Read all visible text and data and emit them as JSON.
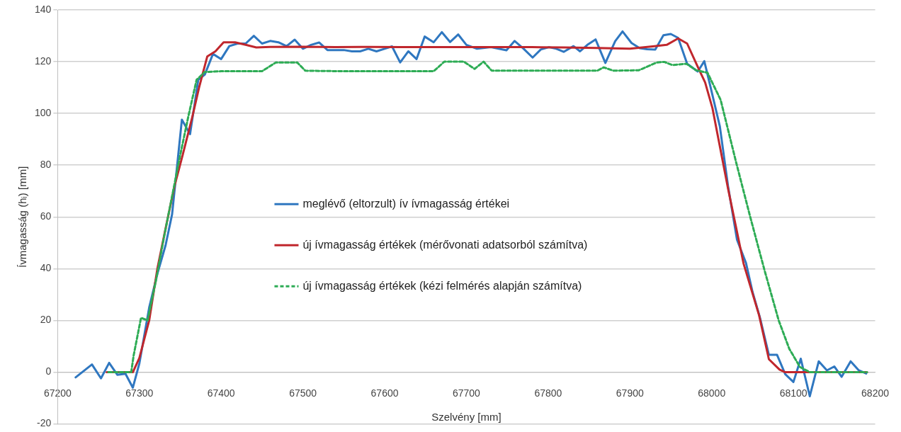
{
  "chart_data": {
    "type": "line",
    "xlabel": "Szelvény [mm]",
    "ylabel": "Ívmagasság (hᵢ) [mm]",
    "xlim": [
      67200,
      68200
    ],
    "xticks": [
      67200,
      67300,
      67400,
      67500,
      67600,
      67700,
      67800,
      67900,
      68000,
      68100,
      68200
    ],
    "ylim": [
      -20,
      140
    ],
    "yticks": [
      -20,
      0,
      20,
      40,
      60,
      80,
      100,
      120,
      140
    ],
    "grid": "y",
    "legend": "center",
    "marker": "none",
    "series": [
      {
        "name": "meglévő (eltorzult) ív ívmagasság értékei",
        "color": "#2f77c0",
        "line_style": "solid",
        "x": [
          67222,
          67242,
          67253,
          67263,
          67273,
          67283,
          67292,
          67300,
          67312,
          67322,
          67332,
          67340,
          67352,
          67362,
          67372,
          67380,
          67390,
          67400,
          67410,
          67420,
          67430,
          67440,
          67450,
          67460,
          67470,
          67480,
          67490,
          67500,
          67510,
          67520,
          67530,
          67540,
          67550,
          67560,
          67570,
          67580,
          67590,
          67600,
          67609,
          67619,
          67629,
          67639,
          67649,
          67660,
          67670,
          67680,
          67690,
          67700,
          67713,
          67730,
          67749,
          67759,
          67770,
          67781,
          67791,
          67801,
          67810,
          67819,
          67831,
          67839,
          67848,
          67858,
          67870,
          67882,
          67891,
          67902,
          67912,
          67921,
          67931,
          67941,
          67950,
          67959,
          67970,
          67983,
          67991,
          67998,
          68010,
          68020,
          68031,
          68042,
          68050,
          68059,
          68070,
          68080,
          68090,
          68100,
          68109,
          68120,
          68131,
          68141,
          68150,
          68159,
          68170,
          68180,
          68189
        ],
        "values": [
          -2,
          3,
          -2.4,
          3.6,
          -1,
          -0.6,
          -6,
          3.4,
          25,
          38,
          49,
          61,
          97.6,
          92,
          113,
          115,
          123,
          121,
          126,
          127,
          127,
          130,
          127,
          128,
          127.5,
          126,
          128.5,
          125,
          126.5,
          127.4,
          124.5,
          124.5,
          124.5,
          124,
          124,
          125,
          124,
          125,
          125.9,
          119.7,
          124,
          121,
          129.7,
          127.5,
          131.4,
          127.6,
          130.5,
          126.5,
          125,
          125.6,
          124.4,
          128,
          125,
          121.6,
          124.7,
          125.6,
          125,
          123.8,
          126,
          124,
          126.5,
          128.6,
          119.5,
          127.9,
          131.7,
          127.2,
          125.2,
          124.8,
          124.7,
          130.2,
          130.7,
          129.2,
          119.2,
          116.2,
          120.2,
          111,
          95,
          72,
          51.2,
          42.2,
          31,
          21.2,
          6.7,
          6.7,
          -0.8,
          -3.8,
          5.2,
          -9.3,
          4.2,
          0.7,
          2.2,
          -1.8,
          4.2,
          0.7,
          -0.5
        ]
      },
      {
        "name": "új ívmagasság értékek (mérővonati adatsorból számítva)",
        "color": "#c0272d",
        "line_style": "solid",
        "x": [
          67260,
          67280,
          67292,
          67300,
          67312,
          67322,
          67333,
          67343,
          67353,
          67365,
          67373,
          67383,
          67393,
          67403,
          67417,
          67430,
          67443,
          67460,
          67500,
          67540,
          67580,
          67620,
          67660,
          67700,
          67740,
          67780,
          67820,
          67860,
          67900,
          67930,
          67945,
          67959,
          67970,
          67983,
          67992,
          68001,
          68020,
          68039,
          68058,
          68070,
          68083,
          68090,
          68130,
          68190
        ],
        "values": [
          0,
          0,
          0,
          5.5,
          20,
          40,
          57,
          72,
          84,
          99,
          110,
          122,
          124,
          127.5,
          127.5,
          126.5,
          125.5,
          125.7,
          125.8,
          125.6,
          125.7,
          125.6,
          125.6,
          125.6,
          125.6,
          125.6,
          125.5,
          125.3,
          125,
          126,
          126.5,
          129,
          127,
          118,
          112,
          102,
          71,
          42,
          22,
          5,
          1,
          0,
          0,
          0
        ]
      },
      {
        "name": "új ívmagasság értékek (kézi felmérés alapján számítva)",
        "color": "#2eac55",
        "line_style": "dashed",
        "x": [
          67262,
          67290,
          67293,
          67302,
          67310,
          67320,
          67330,
          67340,
          67350,
          67360,
          67370,
          67380,
          67400,
          67450,
          67467,
          67493,
          67503,
          67550,
          67600,
          67660,
          67673,
          67697,
          67710,
          67721,
          67731,
          67800,
          67860,
          67868,
          67880,
          67911,
          67933,
          67942,
          67952,
          67969,
          67981,
          67995,
          68011,
          68030,
          68048,
          68065,
          68082,
          68095,
          68108,
          68120,
          68190
        ],
        "values": [
          0,
          0,
          6.5,
          21,
          20,
          35,
          52,
          68,
          84,
          99,
          113,
          116,
          116.3,
          116.3,
          119.7,
          119.7,
          116.5,
          116.3,
          116.3,
          116.3,
          120,
          120,
          117.2,
          120,
          116.5,
          116.5,
          116.5,
          117.8,
          116.5,
          116.7,
          119.7,
          119.9,
          118.7,
          119.2,
          116.7,
          115.7,
          105.2,
          81,
          59,
          39,
          20,
          9,
          2,
          0,
          0
        ]
      }
    ]
  }
}
